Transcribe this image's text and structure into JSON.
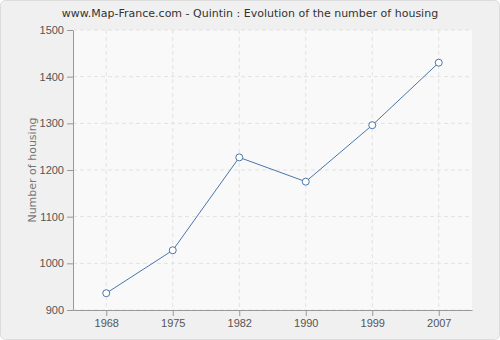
{
  "chart_data": {
    "type": "line",
    "title": "www.Map-France.com - Quintin : Evolution of the number of housing",
    "y_label": "Number of housing",
    "categories": [
      "1968",
      "1975",
      "1982",
      "1990",
      "1999",
      "2007"
    ],
    "values": [
      936,
      1028,
      1227,
      1175,
      1296,
      1430
    ],
    "color": "#4a76a8",
    "marker": "circle",
    "ylim": [
      900,
      1500
    ],
    "yticks": [
      900,
      1000,
      1100,
      1200,
      1300,
      1400,
      1500
    ],
    "grid": true
  }
}
